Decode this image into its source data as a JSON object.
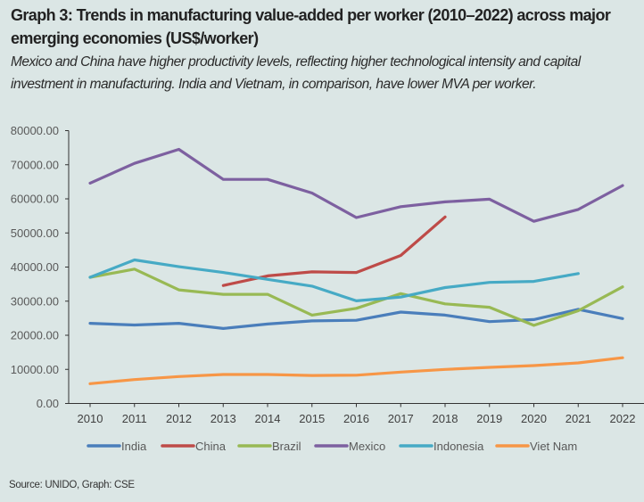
{
  "header": {
    "title": "Graph 3: Trends in manufacturing value-added per worker (2010–2022) across major emerging economies (US$/worker)",
    "subtitle": "Mexico and China have higher productivity levels, reflecting higher technological intensity and capital investment in manufacturing. India and Vietnam, in comparison, have lower MVA per worker."
  },
  "source": "Source: UNIDO, Graph: CSE",
  "chart_data": {
    "type": "line",
    "title": "Graph 3: Trends in manufacturing value-added per worker (2010–2022) across major emerging economies (US$/worker)",
    "xlabel": "",
    "ylabel": "",
    "x": [
      "2010",
      "2011",
      "2012",
      "2013",
      "2014",
      "2015",
      "2016",
      "2017",
      "2018",
      "2019",
      "2020",
      "2021",
      "2022"
    ],
    "ylim": [
      0,
      80000
    ],
    "yticks": [
      "0.00",
      "10000.00",
      "20000.00",
      "30000.00",
      "40000.00",
      "50000.00",
      "60000.00",
      "70000.00",
      "80000.00"
    ],
    "grid": false,
    "legend_position": "bottom",
    "series": [
      {
        "name": "India",
        "color": "#4a7ebb",
        "values": [
          23500,
          23000,
          23500,
          22000,
          23300,
          24200,
          24400,
          26800,
          25900,
          24000,
          24600,
          27600,
          24900
        ]
      },
      {
        "name": "China",
        "color": "#be4b48",
        "values": [
          null,
          null,
          null,
          34600,
          37400,
          38600,
          38400,
          43400,
          54700,
          null,
          null,
          null,
          null
        ]
      },
      {
        "name": "Brazil",
        "color": "#98b954",
        "values": [
          37000,
          39400,
          33300,
          32000,
          32000,
          25900,
          27900,
          32200,
          29200,
          28200,
          22900,
          27200,
          34200
        ]
      },
      {
        "name": "Mexico",
        "color": "#7d60a0",
        "values": [
          64600,
          70400,
          74500,
          65700,
          65700,
          61700,
          54500,
          57700,
          59100,
          59900,
          53400,
          56900,
          63900
        ]
      },
      {
        "name": "Indonesia",
        "color": "#46aac5",
        "values": [
          37000,
          42100,
          40100,
          38400,
          36400,
          34400,
          30100,
          31200,
          34000,
          35500,
          35800,
          38100,
          null
        ]
      },
      {
        "name": "Viet Nam",
        "color": "#f79646",
        "values": [
          5800,
          7000,
          7900,
          8500,
          8500,
          8200,
          8300,
          9200,
          10000,
          10600,
          11100,
          11900,
          13400
        ]
      }
    ]
  }
}
